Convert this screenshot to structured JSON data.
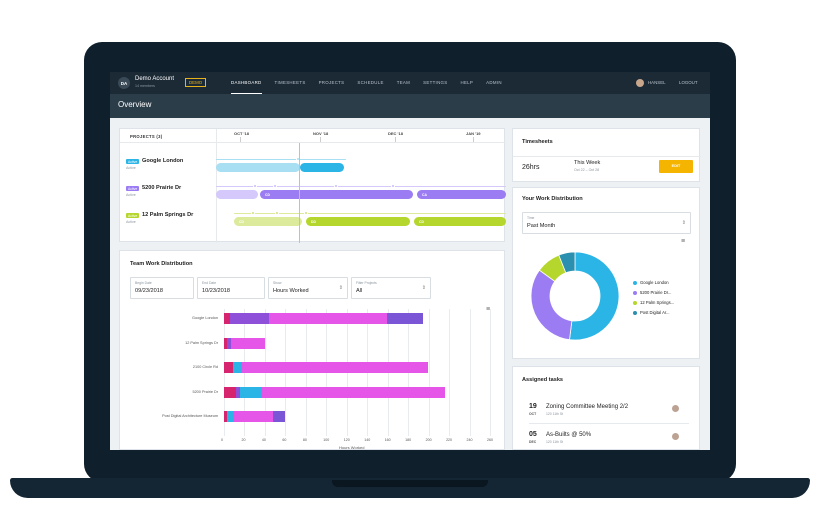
{
  "account": {
    "initials": "DA",
    "name": "Demo Account",
    "members": "14 members",
    "badge": "DEMO"
  },
  "nav": [
    "DASHBOARD",
    "TIMESHEETS",
    "PROJECTS",
    "SCHEDULE",
    "TEAM",
    "SETTINGS",
    "HELP",
    "ADMIN"
  ],
  "user": {
    "name": "HANSEL",
    "logout": "LOGOUT"
  },
  "page_title": "Overview",
  "projects": {
    "header": "PROJECTS (3)",
    "months": [
      "OCT '18",
      "NOV '18",
      "DEC '18",
      "JAN '19"
    ],
    "rows": [
      {
        "tag": "Active",
        "name": "Google London",
        "status": "Active",
        "color": "#2bb5e6",
        "tag_color": "#2bb5e6"
      },
      {
        "tag": "Active",
        "name": "5200 Prairie Dr",
        "status": "Active",
        "color": "#9b7cf2",
        "tag_color": "#9b7cf2"
      },
      {
        "tag": "Active",
        "name": "12 Palm Springs Dr",
        "status": "Active",
        "color": "#b5d62c",
        "tag_color": "#b5d62c"
      }
    ],
    "phase_labels": {
      "cd": "CD",
      "ca": "CA",
      "dd": "DD"
    }
  },
  "team": {
    "title": "Team Work Distribution",
    "filters": [
      {
        "label": "Begin Date",
        "value": "09/23/2018"
      },
      {
        "label": "End Date",
        "value": "10/23/2018"
      },
      {
        "label": "Show",
        "value": "Hours Worked"
      },
      {
        "label": "Filter Projects",
        "value": "All"
      }
    ],
    "menu_icon": "≡"
  },
  "chart_data": {
    "type": "bar",
    "orientation": "horizontal",
    "stacked": true,
    "categories": [
      "Google London",
      "12 Palm Springs Dr",
      "2100 Circle Rd",
      "5200 Prairie Dr",
      "Post Digital Architecture Museum"
    ],
    "series": [
      {
        "color": "#d6246e",
        "values": [
          6,
          3,
          9,
          12,
          3
        ]
      },
      {
        "color": "#8e4fd9",
        "values": [
          38,
          4,
          0,
          4,
          0
        ]
      },
      {
        "color": "#2bb5e6",
        "values": [
          0,
          0,
          8,
          20,
          6
        ]
      },
      {
        "color": "#e455e8",
        "values": [
          115,
          33,
          182,
          180,
          39
        ]
      },
      {
        "color": "#7a55d6",
        "values": [
          36,
          0,
          0,
          0,
          12
        ]
      }
    ],
    "xticks": [
      0,
      20,
      40,
      60,
      80,
      100,
      120,
      140,
      160,
      180,
      200,
      220,
      240,
      260
    ],
    "xlim": [
      0,
      260
    ],
    "xlabel": "Hours Worked"
  },
  "timesheets": {
    "title": "Timesheets",
    "hours": "26hrs",
    "period": "This Week",
    "range": "Oct 22 – Oct 28",
    "button": "EDIT"
  },
  "work_distribution": {
    "title": "Your Work Distribution",
    "select_label": "Time",
    "select_value": "Past Month",
    "legend": [
      {
        "name": "Google London",
        "color": "#2bb5e6",
        "value": 52
      },
      {
        "name": "5200 Prairie Dr...",
        "color": "#9b7cf2",
        "value": 33
      },
      {
        "name": "12 Palm Springs...",
        "color": "#b5d62c",
        "value": 9
      },
      {
        "name": "Post Digital Ar...",
        "color": "#2b8fb0",
        "value": 6
      }
    ]
  },
  "tasks": {
    "title": "Assigned tasks",
    "items": [
      {
        "day": "19",
        "month": "OCT",
        "name": "Zoning Committee Meeting 2/2",
        "sub": "120 11th St"
      },
      {
        "day": "05",
        "month": "DEC",
        "name": "As-Builts @ 50%",
        "sub": "120 11th St"
      }
    ]
  }
}
